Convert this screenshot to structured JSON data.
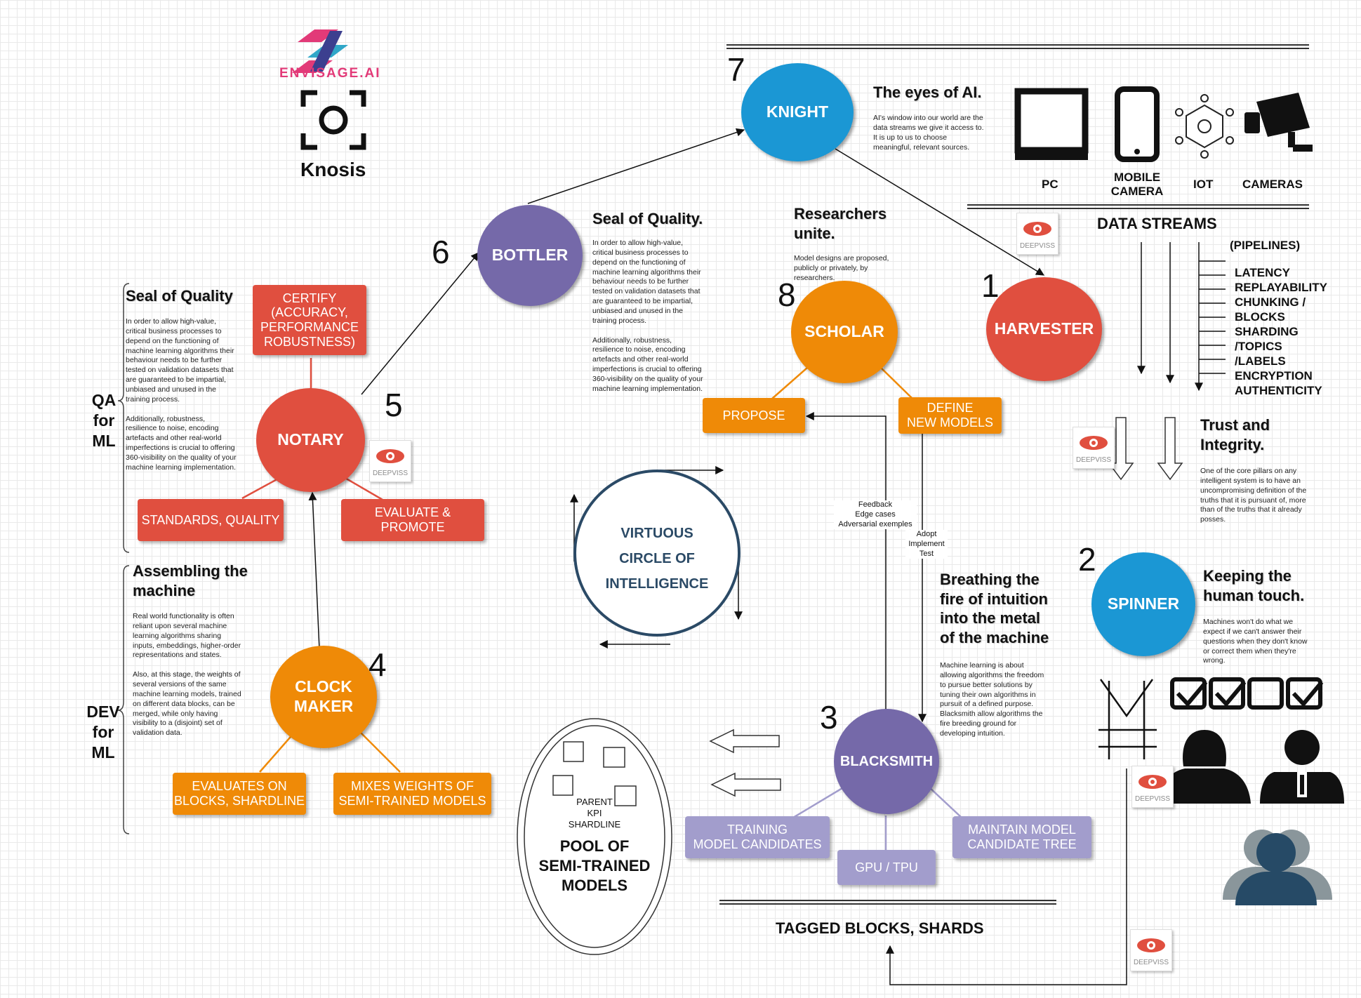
{
  "brand": {
    "name": "ENVISAGE.AI",
    "product": "Knosis"
  },
  "nodes": {
    "knight": "KNIGHT",
    "bottler": "BOTTLER",
    "notary": "NOTARY",
    "clockmaker_1": "CLOCK",
    "clockmaker_2": "MAKER",
    "scholar": "SCHOLAR",
    "harvester": "HARVESTER",
    "spinner": "SPINNER",
    "blacksmith": "BLACKSMITH"
  },
  "numbers": [
    "1",
    "2",
    "3",
    "4",
    "5",
    "6",
    "7",
    "8"
  ],
  "boxes": {
    "certify_1": "CERTIFY",
    "certify_2": "(ACCURACY,",
    "certify_3": "PERFORMANCE",
    "certify_4": "ROBUSTNESS)",
    "standards": "STANDARDS, QUALITY",
    "evaluate_promote": "EVALUATE & PROMOTE",
    "evaluates_blocks_1": "EVALUATES ON",
    "evaluates_blocks_2": "BLOCKS, SHARDLINE",
    "mixes_1": "MIXES WEIGHTS OF",
    "mixes_2": "SEMI-TRAINED MODELS",
    "propose": "PROPOSE",
    "define_1": "DEFINE",
    "define_2": "NEW MODELS",
    "training_1": "TRAINING",
    "training_2": "MODEL CANDIDATES",
    "gpu": "GPU / TPU",
    "maintain_1": "MAINTAIN MODEL",
    "maintain_2": "CANDIDATE TREE"
  },
  "headings": {
    "eyes": "The eyes of AI.",
    "seal_right": "Seal of Quality.",
    "researchers_1": "Researchers",
    "researchers_2": "unite.",
    "seal_left": "Seal of Quality",
    "assembling_1": "Assembling the",
    "assembling_2": "machine",
    "breathing_1": "Breathing the",
    "breathing_2": "fire of intuition",
    "breathing_3": "into the metal",
    "breathing_4": "of the machine",
    "trust_1": "Trust and",
    "trust_2": "Integrity.",
    "keeping_1": "Keeping the",
    "keeping_2": "human touch."
  },
  "paragraphs": {
    "eyes": "AI's window into our world are the\ndata streams we give it access to.\nIt is up to us to choose\nmeaningful, relevant sources.",
    "seal_right": "In order to allow high-value,\ncritical business processes to\ndepend on the functioning of\nmachine learning algorithms their\nbehaviour needs to be further\ntested on validation datasets that\nare guaranteed to be impartial,\nunbiased and unused in the\ntraining process.\n\nAdditionally, robustness,\nresilience to noise, encoding\nartefacts and other real-world\nimperfections is crucial to offering\n360-visibility on the quality of your\nmachine learning implementation.",
    "researchers": "Model designs are proposed,\npublicly or privately, by\nresearchers.",
    "seal_left": "In order to allow high-value,\ncritical business processes to\ndepend on the functioning of\nmachine learning algorithms their\nbehaviour needs to be further\ntested on validation datasets that\nare guaranteed to be impartial,\nunbiased and unused in the\ntraining process.\n\nAdditionally, robustness,\nresilience to noise, encoding\nartefacts and other real-world\nimperfections is crucial to offering\n360-visibility on the quality of your\nmachine learning implementation.",
    "assembling": "Real world functionality is often\nreliant upon several machine\nlearning algorithms sharing\ninputs, embeddings, higher-order\nrepresentations and states.\n\nAlso, at this stage, the weights of\nseveral versions of the same\nmachine learning models, trained\non different data blocks, can be\nmerged, while only having\nvisibility to a (disjoint) set of\nvalidation data.",
    "breathing": "Machine learning is about\nallowing algorithms the freedom\nto pursue better solutions by\ntuning their own algorithms in\npursuit of a defined purpose.\nBlacksmith allow algorithms the\nfire breeding ground for\ndeveloping intuition.",
    "trust": "One of the core pillars on any\nintelligent system is to have an\nuncompromising definition of the\ntruths that it is pursuant of, more\nthan of the truths that it already\nposses.",
    "keeping": "Machines won't do what we\nexpect if we can't answer their\nquestions when they don't know\nor correct them when they're\nwrong."
  },
  "devices": [
    "PC",
    "MOBILE",
    "CAMERA",
    "IOT",
    "CAMERAS"
  ],
  "streams": {
    "title": "DATA STREAMS",
    "pipelines": "(PIPELINES)",
    "items": [
      "LATENCY",
      "REPLAYABILITY",
      "CHUNKING /",
      "BLOCKS",
      "SHARDING",
      "/TOPICS",
      "/LABELS",
      "ENCRYPTION",
      "AUTHENTICITY"
    ]
  },
  "side_labels": {
    "qa": [
      "QA",
      "for",
      "ML"
    ],
    "dev": [
      "DEV",
      "for",
      "ML"
    ]
  },
  "virtuous": [
    "VIRTUOUS",
    "CIRCLE OF",
    "INTELLIGENCE"
  ],
  "pool": {
    "small": [
      "PARENT",
      "KPI",
      "SHARDLINE"
    ],
    "big": [
      "POOL OF",
      "SEMI-TRAINED",
      "MODELS"
    ]
  },
  "notes": {
    "feedback": [
      "Feedback",
      "Edge cases",
      "Adversarial exemples"
    ],
    "adopt": [
      "Adopt",
      "Implement",
      "Test"
    ]
  },
  "tagged": "TAGGED BLOCKS, SHARDS",
  "deepviss": "DEEPVISS",
  "colors": {
    "red": "#e04f3f",
    "blue": "#1b97d4",
    "purple": "#7569a9",
    "orange": "#ef8a07",
    "lavender": "#a29dcc",
    "navy": "#264a66"
  },
  "icons": [
    "pc-monitor-icon",
    "mobile-phone-icon",
    "iot-network-icon",
    "security-camera-icon",
    "checkbox-icon",
    "woman-user-icon",
    "man-user-icon",
    "user-group-icon",
    "deepviss-eye-icon",
    "knosis-camera-logo"
  ]
}
